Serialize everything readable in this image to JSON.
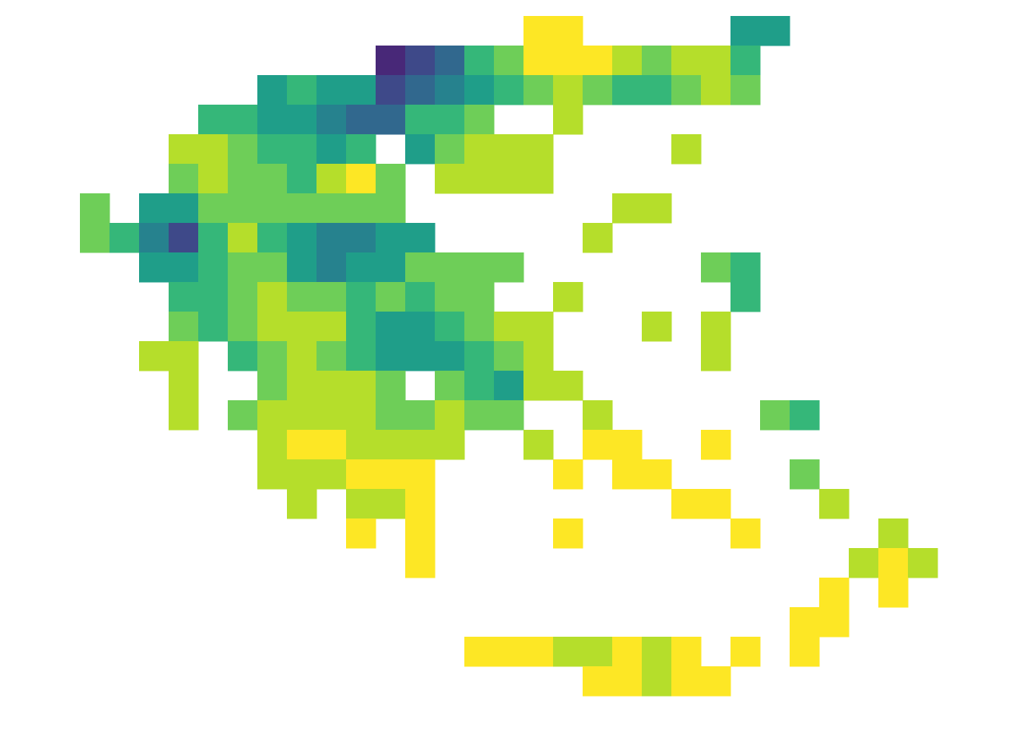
{
  "chart_data": {
    "type": "heatmap",
    "colormap": "viridis",
    "zlim": [
      0,
      9
    ],
    "values": [
      [
        null,
        null,
        null,
        null,
        null,
        null,
        null,
        null,
        null,
        null,
        null,
        null,
        null,
        null,
        null,
        9,
        9,
        null,
        null,
        null,
        null,
        null,
        5,
        5,
        null,
        null,
        null,
        null,
        null
      ],
      [
        null,
        null,
        null,
        null,
        null,
        null,
        null,
        null,
        null,
        null,
        1,
        2,
        3,
        6,
        7,
        9,
        9,
        9,
        8,
        7,
        8,
        8,
        6,
        null,
        null,
        null,
        null,
        null,
        null
      ],
      [
        null,
        null,
        null,
        null,
        null,
        null,
        5,
        6,
        5,
        5,
        2,
        3,
        4,
        5,
        6,
        7,
        8,
        7,
        6,
        6,
        7,
        8,
        7,
        null,
        null,
        null,
        null,
        null,
        null
      ],
      [
        null,
        null,
        null,
        null,
        6,
        6,
        5,
        5,
        4,
        3,
        3,
        6,
        6,
        7,
        null,
        null,
        8,
        null,
        null,
        null,
        null,
        null,
        null,
        null,
        null,
        null,
        null,
        null,
        null
      ],
      [
        null,
        null,
        null,
        8,
        8,
        7,
        6,
        6,
        5,
        6,
        null,
        5,
        7,
        8,
        8,
        8,
        null,
        null,
        null,
        null,
        8,
        null,
        null,
        null,
        null,
        null,
        null,
        null,
        null
      ],
      [
        null,
        null,
        null,
        7,
        8,
        7,
        7,
        6,
        8,
        9,
        7,
        null,
        8,
        8,
        8,
        8,
        null,
        null,
        null,
        null,
        null,
        null,
        null,
        null,
        null,
        null,
        null,
        null,
        null
      ],
      [
        7,
        null,
        5,
        5,
        7,
        7,
        7,
        7,
        7,
        7,
        7,
        null,
        null,
        null,
        null,
        null,
        null,
        null,
        8,
        8,
        null,
        null,
        null,
        null,
        null,
        null,
        null,
        null,
        null
      ],
      [
        7,
        6,
        4,
        2,
        6,
        8,
        6,
        5,
        4,
        4,
        5,
        5,
        null,
        null,
        null,
        null,
        null,
        8,
        null,
        null,
        null,
        null,
        null,
        null,
        null,
        null,
        null,
        null,
        null
      ],
      [
        null,
        null,
        5,
        5,
        6,
        7,
        7,
        5,
        4,
        5,
        5,
        7,
        7,
        7,
        7,
        null,
        null,
        null,
        null,
        null,
        null,
        7,
        6,
        null,
        null,
        null,
        null,
        null,
        null
      ],
      [
        null,
        null,
        null,
        6,
        6,
        7,
        8,
        7,
        7,
        6,
        7,
        6,
        7,
        7,
        null,
        null,
        8,
        null,
        null,
        null,
        null,
        null,
        6,
        null,
        null,
        null,
        null,
        null,
        null
      ],
      [
        null,
        null,
        null,
        7,
        6,
        7,
        8,
        8,
        8,
        6,
        5,
        5,
        6,
        7,
        8,
        8,
        null,
        null,
        null,
        8,
        null,
        8,
        null,
        null,
        null,
        null,
        null,
        null,
        null
      ],
      [
        null,
        null,
        8,
        8,
        null,
        6,
        7,
        8,
        7,
        6,
        5,
        5,
        5,
        6,
        7,
        8,
        null,
        null,
        null,
        null,
        null,
        8,
        null,
        null,
        null,
        null,
        null,
        null,
        null
      ],
      [
        null,
        null,
        null,
        8,
        null,
        null,
        7,
        8,
        8,
        8,
        7,
        null,
        7,
        6,
        5,
        8,
        8,
        null,
        null,
        null,
        null,
        null,
        null,
        null,
        null,
        null,
        null,
        null,
        null
      ],
      [
        null,
        null,
        null,
        8,
        null,
        7,
        8,
        8,
        8,
        8,
        7,
        7,
        8,
        7,
        7,
        null,
        null,
        8,
        null,
        null,
        null,
        null,
        null,
        7,
        6,
        null,
        null,
        null,
        null
      ],
      [
        null,
        null,
        null,
        null,
        null,
        null,
        8,
        9,
        9,
        8,
        8,
        8,
        8,
        null,
        null,
        8,
        null,
        9,
        9,
        null,
        null,
        9,
        null,
        null,
        null,
        null,
        null,
        null,
        null
      ],
      [
        null,
        null,
        null,
        null,
        null,
        null,
        8,
        8,
        8,
        9,
        9,
        9,
        null,
        null,
        null,
        null,
        9,
        null,
        9,
        9,
        null,
        null,
        null,
        null,
        7,
        null,
        null,
        null,
        null
      ],
      [
        null,
        null,
        null,
        null,
        null,
        null,
        null,
        8,
        null,
        8,
        8,
        9,
        null,
        null,
        null,
        null,
        null,
        null,
        null,
        null,
        9,
        9,
        null,
        null,
        null,
        8,
        null,
        null,
        null
      ],
      [
        null,
        null,
        null,
        null,
        null,
        null,
        null,
        null,
        null,
        9,
        null,
        9,
        null,
        null,
        null,
        null,
        9,
        null,
        null,
        null,
        null,
        null,
        9,
        null,
        null,
        null,
        null,
        8,
        null
      ],
      [
        null,
        null,
        null,
        null,
        null,
        null,
        null,
        null,
        null,
        null,
        null,
        9,
        null,
        null,
        null,
        null,
        null,
        null,
        null,
        null,
        null,
        null,
        null,
        null,
        null,
        null,
        8,
        9,
        8
      ],
      [
        null,
        null,
        null,
        null,
        null,
        null,
        null,
        null,
        null,
        null,
        null,
        null,
        null,
        null,
        null,
        null,
        null,
        null,
        null,
        null,
        null,
        null,
        null,
        null,
        null,
        9,
        null,
        9,
        null
      ],
      [
        null,
        null,
        null,
        null,
        null,
        null,
        null,
        null,
        null,
        null,
        null,
        null,
        null,
        null,
        null,
        null,
        null,
        null,
        null,
        null,
        null,
        null,
        null,
        null,
        9,
        9,
        null,
        null,
        null
      ],
      [
        null,
        null,
        null,
        null,
        null,
        null,
        null,
        null,
        null,
        null,
        null,
        null,
        null,
        9,
        9,
        9,
        8,
        8,
        9,
        8,
        9,
        null,
        9,
        null,
        9,
        null,
        null,
        null,
        null
      ],
      [
        null,
        null,
        null,
        null,
        null,
        null,
        null,
        null,
        null,
        null,
        null,
        null,
        null,
        null,
        null,
        null,
        null,
        9,
        9,
        8,
        9,
        9,
        null,
        null,
        null,
        null,
        null,
        null,
        null
      ]
    ]
  }
}
